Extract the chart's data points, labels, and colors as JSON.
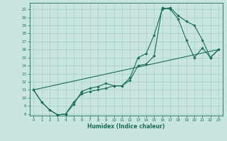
{
  "title": "",
  "xlabel": "Humidex (Indice chaleur)",
  "bg_color": "#c8e6df",
  "line_color": "#1a6b5a",
  "grid_color": "#a8cfc7",
  "xlim": [
    -0.5,
    23.5
  ],
  "ylim": [
    7.8,
    21.8
  ],
  "xticks": [
    0,
    1,
    2,
    3,
    4,
    5,
    6,
    7,
    8,
    9,
    10,
    11,
    12,
    13,
    14,
    15,
    16,
    17,
    18,
    19,
    20,
    21,
    22,
    23
  ],
  "yticks": [
    8,
    9,
    10,
    11,
    12,
    13,
    14,
    15,
    16,
    17,
    18,
    19,
    20,
    21
  ],
  "line1_x": [
    0,
    1,
    2,
    3,
    4,
    5,
    6,
    7,
    8,
    9,
    10,
    11,
    12,
    13,
    14,
    15,
    16,
    17,
    18,
    19,
    20,
    21,
    22,
    23
  ],
  "line1_y": [
    11.0,
    9.5,
    8.5,
    7.9,
    8.0,
    9.2,
    10.8,
    11.2,
    11.4,
    11.8,
    11.5,
    11.5,
    12.2,
    14.0,
    14.2,
    15.2,
    21.2,
    21.0,
    19.8,
    17.2,
    15.0,
    16.2,
    15.0,
    16.0
  ],
  "line2_x": [
    0,
    1,
    2,
    3,
    4,
    5,
    6,
    7,
    8,
    9,
    10,
    11,
    12,
    13,
    14,
    15,
    16,
    17,
    18,
    19,
    20,
    21,
    22,
    23
  ],
  "line2_y": [
    11.0,
    9.5,
    8.5,
    7.9,
    8.0,
    9.5,
    10.5,
    10.8,
    11.0,
    11.2,
    11.5,
    11.5,
    12.5,
    15.0,
    15.5,
    17.8,
    21.0,
    21.2,
    20.2,
    19.5,
    19.0,
    17.2,
    15.0,
    16.0
  ],
  "line3_x": [
    0,
    23
  ],
  "line3_y": [
    11.0,
    16.0
  ]
}
